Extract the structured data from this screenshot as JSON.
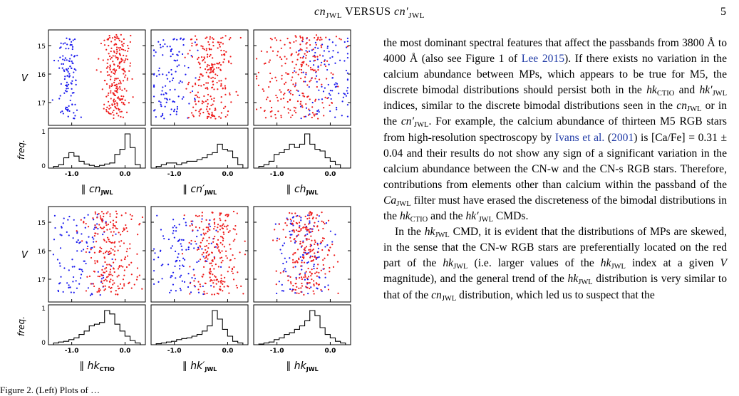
{
  "header": {
    "title_a": "cn",
    "title_a_sub": "JWL",
    "title_mid": " VERSUS ",
    "title_b": "cn′",
    "title_b_sub": "JWL",
    "page_number": "5"
  },
  "figure": {
    "colors": {
      "cn_w": "#1a1aee",
      "cn_s": "#ee1a1a"
    },
    "ylabel_cmd": "V",
    "ylabel_hist": "freq.",
    "y_ticks": [
      "15",
      "16",
      "17"
    ],
    "freq_ticks": [
      "1",
      "0"
    ],
    "x_ticks": [
      "-1.0",
      "0.0"
    ],
    "panels": [
      {
        "label_prefix": "∥ ",
        "label": "cn",
        "sub": "JWL"
      },
      {
        "label_prefix": "∥ ",
        "label": "cn′",
        "sub": "JWL"
      },
      {
        "label_prefix": "∥ ",
        "label": "ch",
        "sub": "JWL"
      },
      {
        "label_prefix": "∥ ",
        "label": "hk",
        "sub": "CTIO"
      },
      {
        "label_prefix": "∥ ",
        "label": "hk′",
        "sub": "JWL"
      },
      {
        "label_prefix": "∥ ",
        "label": "hk",
        "sub": "JWL"
      }
    ],
    "caption_fragment": "Figure 2.    (Left) Plots of …"
  },
  "body": {
    "p1": [
      "the most dominant spectral features that affect the passbands from 3800 Å to 4000 Å (also see Figure 1 of ",
      "Lee 2015",
      "). If there exists no variation in the calcium abundance between MPs, which appears to be true for M5, the discrete bimodal distributions should persist both in the ",
      "hk",
      "CTIO",
      " and ",
      "hk′",
      "JWL",
      " indices, similar to the discrete bimodal distributions seen in the ",
      "cn",
      "JWL",
      " or in the ",
      "cn′",
      "JWL",
      ". For example, the calcium abundance of thirteen M5 RGB stars from high-resolution spectroscopy by ",
      "Ivans et al.",
      "2001",
      " is [Ca/Fe] = 0.31 ± 0.04 and their results do not show any sign of a significant variation in the calcium abundance between the CN-w and the CN-s RGB stars. Therefore, contributions from elements other than calcium within the passband of the ",
      "Ca",
      "JWL",
      " filter must have erased the discreteness of the bimodal distributions in the ",
      "hk",
      "CTIO",
      " and the ",
      "hk′",
      "JWL",
      " CMDs."
    ],
    "p2": [
      "In the ",
      "hk",
      "JWL",
      " CMD, it is evident that the distributions of MPs are skewed, in the sense that the CN-w RGB stars are preferentially located on the red part of the ",
      "hk",
      "JWL",
      " (i.e. larger values of the ",
      "hk",
      "JWL",
      " index at a given ",
      "V",
      " magnitude), and the general trend of the ",
      "hk",
      "JWL",
      " distribution is very similar to that of the ",
      "cn",
      "JWL",
      " distribution, which led us to suspect that the"
    ]
  }
}
